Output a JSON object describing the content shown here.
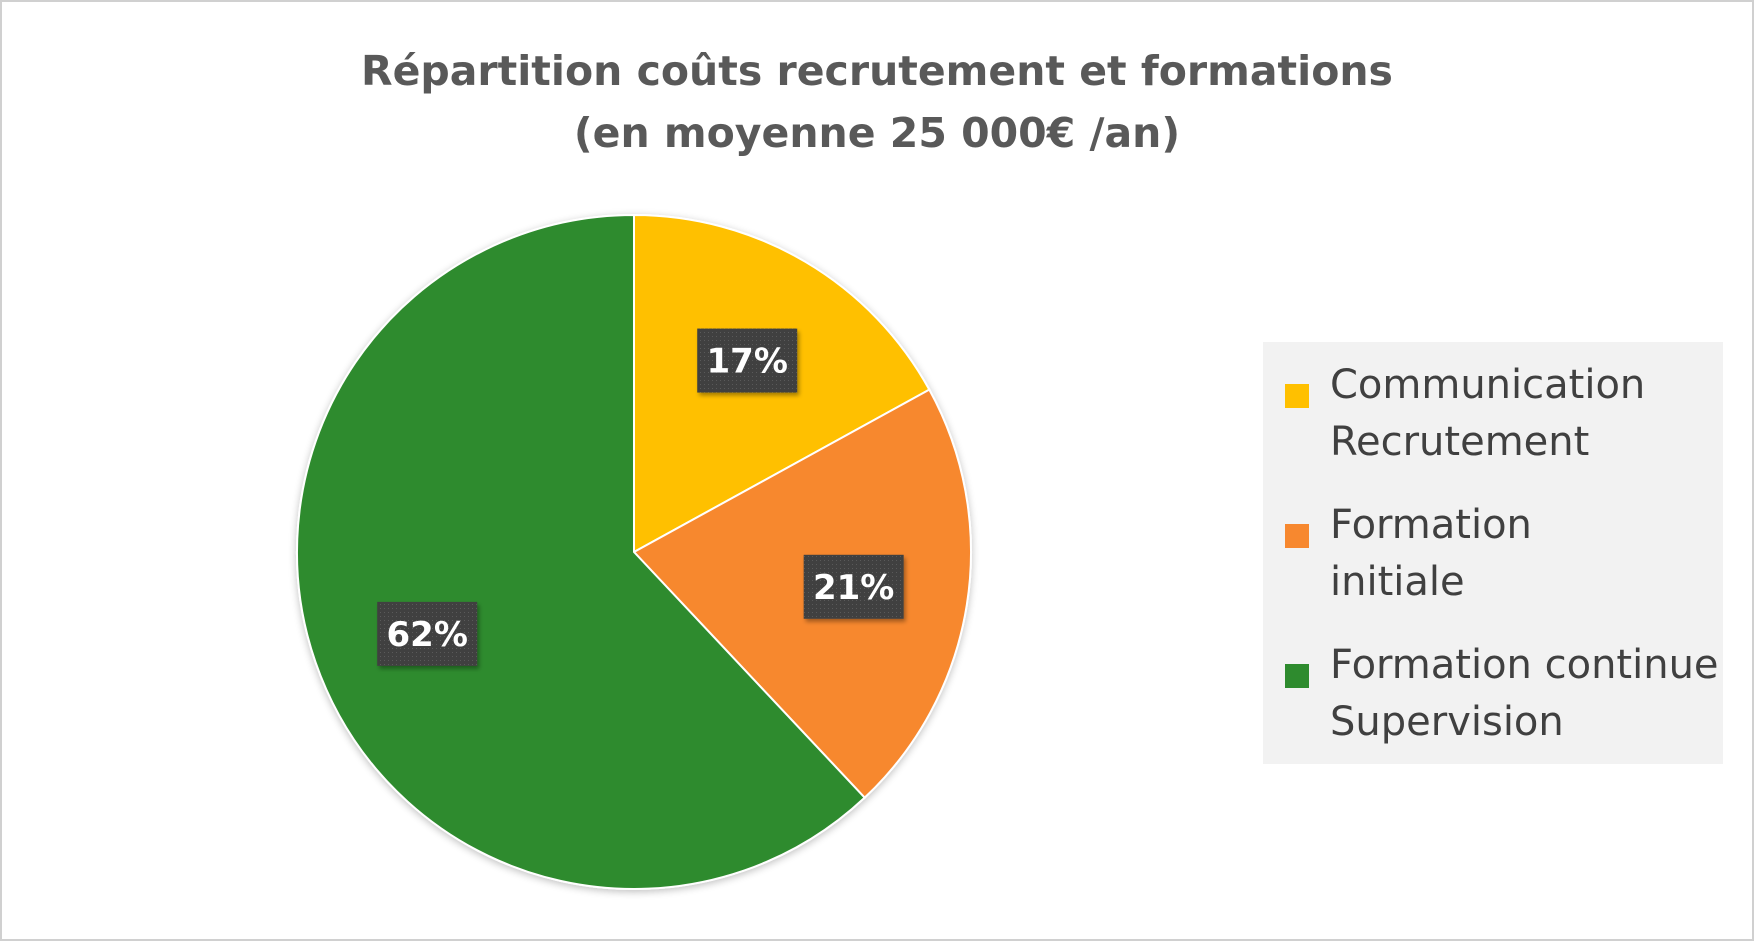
{
  "chart_data": {
    "type": "pie",
    "title_lines": [
      "Répartition coûts recrutement et formations",
      "(en moyenne 25 000€ /an)"
    ],
    "slices": [
      {
        "label_lines": [
          "Communication",
          "Recrutement"
        ],
        "value": 17,
        "data_label": "17%",
        "color": "#FFC000"
      },
      {
        "label_lines": [
          "Formation",
          "initiale"
        ],
        "value": 21,
        "data_label": "21%",
        "color": "#F7882F"
      },
      {
        "label_lines": [
          "Formation continue",
          "Supervision"
        ],
        "value": 62,
        "data_label": "62%",
        "color": "#2E8B2E"
      }
    ],
    "legend_position": "right",
    "data_label_style": {
      "background": "#404040",
      "text_color": "#ffffff"
    }
  }
}
